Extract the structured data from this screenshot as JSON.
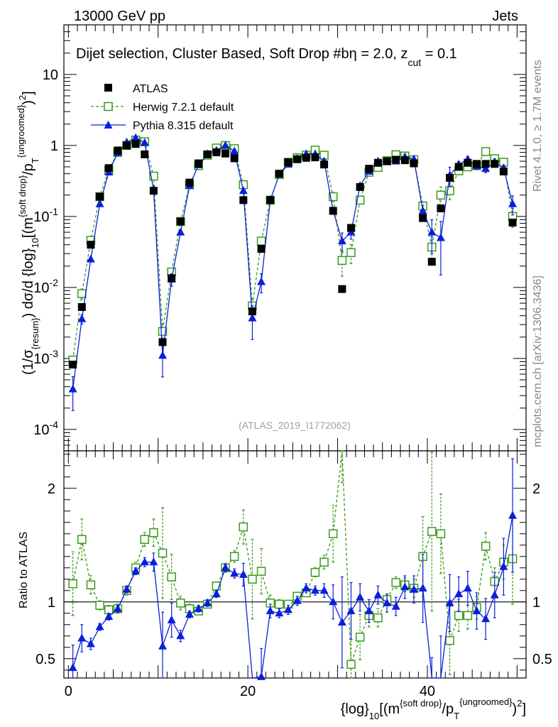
{
  "header": {
    "left": "13000 GeV pp",
    "right": "Jets"
  },
  "side_labels": {
    "rivet": "Rivet 4.1.0, ≥ 1.7M events",
    "mcplots": "mcplots.cern.ch [arXiv:1306.3436]"
  },
  "analysis_id": "(ATLAS_2019_I1772062)",
  "title": "Dijet selection, Cluster Based, Soft Drop #b",
  "title_tail": {
    "beta": "η = 2.0, z",
    "cut_sub": "cut",
    "value": " = 0.1"
  },
  "legend": [
    {
      "label": "ATLAS",
      "color": "#000000",
      "marker": "square-filled"
    },
    {
      "label": "Herwig 7.2.1 default",
      "color": "#3a9a1a",
      "marker": "square-open"
    },
    {
      "label": "Pythia 8.315 default",
      "color": "#0a1fdc",
      "marker": "triangle-filled"
    }
  ],
  "ylabel_main": {
    "p1": "(1/σ",
    "p1_sub": "{resum}",
    "p2": ") dσ/d {log}",
    "p2_sub": "10",
    "p3": "[(m",
    "p3_sup": "{soft drop}",
    "p4": "/p",
    "p4_sub": "T",
    "p4_sup": "{ungroomed}",
    "p5": ")",
    "p5_sup": "2",
    "p6": "]"
  },
  "ylabel_ratio": "Ratio to ATLAS",
  "xlabel": {
    "p1": "{log}",
    "p1_sub": "10",
    "p2": "[(m",
    "p2_sup": "{soft drop}",
    "p3": "/p",
    "p3_sub": "T",
    "p3_sup": "{ungroomed}",
    "p4": ")",
    "p4_sup": "2",
    "p5": "]"
  },
  "chart_data": {
    "type": "scatter",
    "xlim": [
      -0.5,
      51
    ],
    "ylim_main": [
      5e-05,
      50
    ],
    "ylim_ratio": [
      0.33,
      2.33
    ],
    "x_ticks": [
      0,
      20,
      40
    ],
    "ratio_ticks": [
      "0.5",
      "1",
      "2"
    ],
    "main_ticks": [
      {
        "m": "10",
        "e": "-4"
      },
      {
        "m": "10",
        "e": "-3"
      },
      {
        "m": "10",
        "e": "-2"
      },
      {
        "m": "10",
        "e": "-1"
      },
      {
        "m": "1",
        "e": ""
      },
      {
        "m": "10",
        "e": ""
      }
    ],
    "x": [
      0.5,
      1.5,
      2.5,
      3.5,
      4.5,
      5.5,
      6.5,
      7.5,
      8.5,
      9.5,
      10.5,
      11.5,
      12.5,
      13.5,
      14.5,
      15.5,
      16.5,
      17.5,
      18.5,
      19.5,
      20.5,
      21.5,
      22.5,
      23.5,
      24.5,
      25.5,
      26.5,
      27.5,
      28.5,
      29.5,
      30.5,
      31.5,
      32.5,
      33.5,
      34.5,
      35.5,
      36.5,
      37.5,
      38.5,
      39.5,
      40.5,
      41.5,
      42.5,
      43.5,
      44.5,
      45.5,
      46.5,
      47.5,
      48.5,
      49.5
    ],
    "series": [
      {
        "name": "ATLAS",
        "values": [
          0.00082,
          0.0053,
          0.04,
          0.19,
          0.48,
          0.85,
          1.0,
          1.05,
          0.75,
          0.23,
          0.0017,
          0.0135,
          0.085,
          0.3,
          0.56,
          0.75,
          0.8,
          0.77,
          0.66,
          0.17,
          0.0046,
          0.035,
          0.17,
          0.4,
          0.58,
          0.64,
          0.67,
          0.68,
          0.54,
          0.12,
          0.0095,
          0.069,
          0.26,
          0.47,
          0.57,
          0.6,
          0.63,
          0.62,
          0.56,
          0.095,
          0.023,
          0.13,
          0.35,
          0.5,
          0.57,
          0.55,
          0.55,
          0.55,
          0.43,
          0.082
        ],
        "errors": []
      },
      {
        "name": "Herwig 7.2.1 default",
        "values": [
          0.00095,
          0.0082,
          0.046,
          0.19,
          0.45,
          0.8,
          1.0,
          1.19,
          1.13,
          0.37,
          0.0024,
          0.0165,
          0.085,
          0.28,
          0.52,
          0.73,
          0.92,
          1.0,
          0.9,
          0.28,
          0.0055,
          0.045,
          0.17,
          0.39,
          0.58,
          0.67,
          0.73,
          0.86,
          0.73,
          0.19,
          0.024,
          0.031,
          0.17,
          0.42,
          0.49,
          0.61,
          0.74,
          0.71,
          0.63,
          0.14,
          0.037,
          0.2,
          0.23,
          0.44,
          0.5,
          0.52,
          0.82,
          0.65,
          0.58,
          0.1
        ],
        "errors": [
          0.1,
          0.16,
          0.05,
          0.02,
          0.02,
          0.02,
          0.02,
          0.03,
          0.03,
          0.08,
          0.3,
          0.12,
          0.04,
          0.03,
          0.02,
          0.02,
          0.02,
          0.02,
          0.02,
          0.05,
          0.25,
          0.12,
          0.05,
          0.02,
          0.02,
          0.02,
          0.02,
          0.02,
          0.03,
          0.15,
          0.4,
          0.3,
          0.07,
          0.04,
          0.03,
          0.02,
          0.02,
          0.03,
          0.03,
          0.15,
          0.4,
          0.3,
          0.25,
          0.08,
          0.06,
          0.05,
          0.04,
          0.05,
          0.08,
          0.3
        ]
      },
      {
        "name": "Pythia 8.315 default",
        "values": [
          0.00037,
          0.0036,
          0.025,
          0.15,
          0.42,
          0.79,
          1.11,
          1.28,
          1.09,
          0.24,
          0.0011,
          0.013,
          0.06,
          0.27,
          0.53,
          0.76,
          0.85,
          1.0,
          0.83,
          0.23,
          0.0037,
          0.012,
          0.17,
          0.39,
          0.54,
          0.65,
          0.76,
          0.76,
          0.6,
          0.12,
          0.045,
          0.06,
          0.27,
          0.43,
          0.6,
          0.59,
          0.6,
          0.69,
          0.64,
          0.12,
          0.06,
          0.05,
          0.38,
          0.54,
          0.64,
          0.51,
          0.47,
          0.58,
          0.48,
          0.15
        ],
        "errors": [
          0.5,
          0.15,
          0.05,
          0.02,
          0.02,
          0.02,
          0.02,
          0.02,
          0.03,
          0.05,
          0.5,
          0.2,
          0.05,
          0.03,
          0.02,
          0.02,
          0.02,
          0.02,
          0.02,
          0.05,
          0.5,
          0.3,
          0.07,
          0.03,
          0.02,
          0.02,
          0.02,
          0.02,
          0.03,
          0.1,
          0.3,
          0.2,
          0.07,
          0.05,
          0.05,
          0.05,
          0.05,
          0.06,
          0.06,
          0.2,
          0.5,
          0.7,
          0.3,
          0.1,
          0.08,
          0.1,
          0.12,
          0.12,
          0.1,
          0.3
        ]
      }
    ],
    "ratios": [
      {
        "name": "Herwig 7.2.1 default",
        "values": [
          1.16,
          1.55,
          1.15,
          0.97,
          0.93,
          0.94,
          1.1,
          1.3,
          1.55,
          1.61,
          1.43,
          1.22,
          0.99,
          0.94,
          0.92,
          0.98,
          1.14,
          1.3,
          1.4,
          1.66,
          1.2,
          1.27,
          0.99,
          0.98,
          0.98,
          1.05,
          1.08,
          1.26,
          1.35,
          1.6,
          2.55,
          0.45,
          0.69,
          0.88,
          0.86,
          1.02,
          1.17,
          1.15,
          1.12,
          1.4,
          1.62,
          1.6,
          0.66,
          0.88,
          0.88,
          0.95,
          1.49,
          1.18,
          1.35,
          1.38
        ],
        "errors": [
          0.28,
          0.18,
          0.08,
          0.04,
          0.04,
          0.04,
          0.04,
          0.05,
          0.06,
          0.12,
          0.4,
          0.2,
          0.06,
          0.04,
          0.03,
          0.03,
          0.03,
          0.04,
          0.05,
          0.15,
          0.35,
          0.2,
          0.07,
          0.04,
          0.03,
          0.03,
          0.03,
          0.04,
          0.06,
          0.25,
          0.5,
          0.45,
          0.2,
          0.1,
          0.08,
          0.05,
          0.05,
          0.06,
          0.08,
          0.35,
          0.7,
          0.35,
          0.3,
          0.14,
          0.12,
          0.1,
          0.12,
          0.12,
          0.15,
          0.4
        ]
      },
      {
        "name": "Pythia 8.315 default",
        "values": [
          0.42,
          0.68,
          0.63,
          0.78,
          0.87,
          0.94,
          1.11,
          1.27,
          1.35,
          1.35,
          0.61,
          0.84,
          0.7,
          0.89,
          0.94,
          0.99,
          1.07,
          1.3,
          1.25,
          1.24,
          0.01,
          0.34,
          0.92,
          0.9,
          0.93,
          1.01,
          1.12,
          1.1,
          1.1,
          1.0,
          0.82,
          0.92,
          1.04,
          0.92,
          1.06,
          0.99,
          0.96,
          1.13,
          1.11,
          1.12,
          0.01,
          0.3,
          0.99,
          1.07,
          1.12,
          0.92,
          0.85,
          1.06,
          1.31,
          1.76
        ],
        "errors": [
          0.2,
          0.12,
          0.05,
          0.03,
          0.03,
          0.03,
          0.03,
          0.03,
          0.04,
          0.08,
          0.3,
          0.15,
          0.05,
          0.03,
          0.03,
          0.03,
          0.03,
          0.03,
          0.04,
          0.1,
          0.3,
          0.25,
          0.06,
          0.04,
          0.04,
          0.04,
          0.04,
          0.04,
          0.06,
          0.15,
          0.4,
          0.25,
          0.12,
          0.1,
          0.08,
          0.08,
          0.08,
          0.1,
          0.12,
          0.3,
          0.5,
          0.4,
          0.25,
          0.15,
          0.15,
          0.16,
          0.18,
          0.2,
          0.25,
          0.5
        ]
      }
    ]
  }
}
